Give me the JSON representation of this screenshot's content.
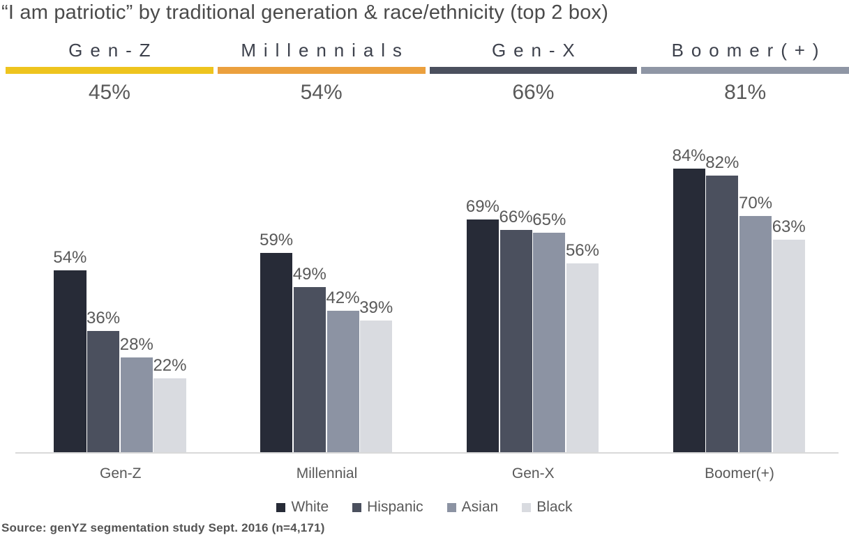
{
  "title": "“I am patriotic” by traditional generation & race/ethnicity (top 2 box)",
  "header": {
    "segments": [
      {
        "label": "Gen-Z",
        "value": "45%",
        "color": "#eec41e"
      },
      {
        "label": "Millennials",
        "value": "54%",
        "color": "#eba03e"
      },
      {
        "label": "Gen-X",
        "value": "66%",
        "color": "#4b505e"
      },
      {
        "label": "Boomer(+)",
        "value": "81%",
        "color": "#8f96a5"
      }
    ]
  },
  "chart_data": {
    "type": "bar",
    "title": "“I am patriotic” by traditional generation & race/ethnicity (top 2 box)",
    "categories": [
      "Gen-Z",
      "Millennial",
      "Gen-X",
      "Boomer(+)"
    ],
    "series": [
      {
        "name": "White",
        "color": "#272b37",
        "values": [
          54,
          59,
          69,
          84
        ]
      },
      {
        "name": "Hispanic",
        "color": "#4b505e",
        "values": [
          36,
          49,
          66,
          82
        ]
      },
      {
        "name": "Asian",
        "color": "#8c93a3",
        "values": [
          28,
          42,
          65,
          70
        ]
      },
      {
        "name": "Black",
        "color": "#d9dbe0",
        "values": [
          22,
          39,
          56,
          63
        ]
      }
    ],
    "group_totals": {
      "labels": [
        "Gen-Z",
        "Millennials",
        "Gen-X",
        "Boomer(+)"
      ],
      "values": [
        45,
        54,
        66,
        81
      ]
    },
    "value_suffix": "%",
    "ylim": [
      0,
      100
    ],
    "grid": false,
    "data_labels": "outside-end",
    "legend_position": "bottom"
  },
  "source": "Source: genYZ segmentation study Sept. 2016 (n=4,171)"
}
